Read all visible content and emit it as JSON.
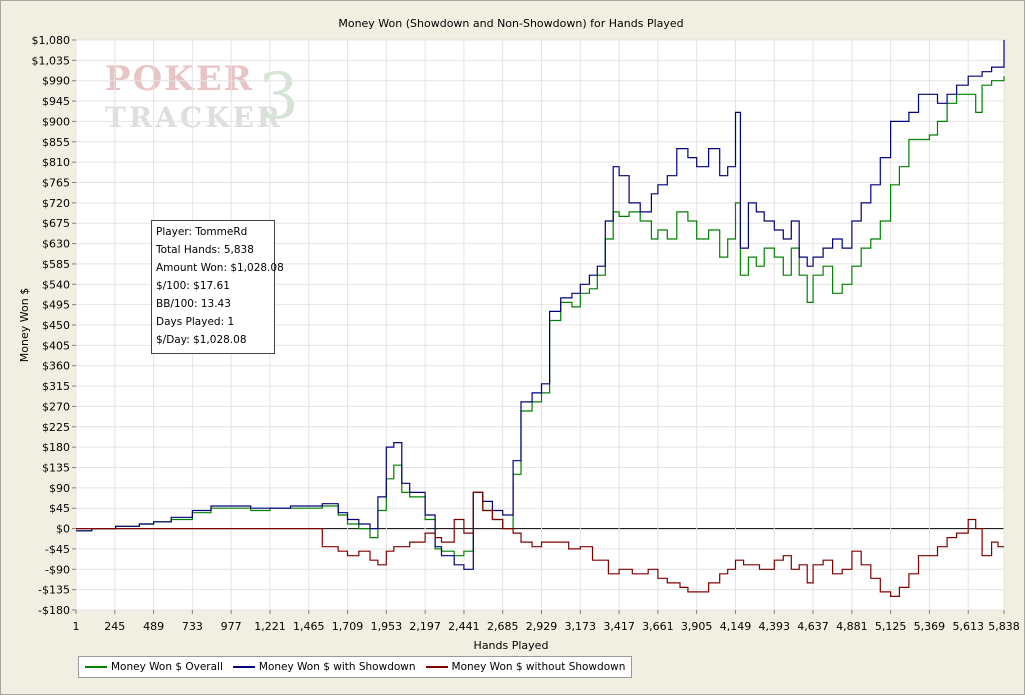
{
  "chart_data": {
    "type": "line",
    "title": "Money Won (Showdown and Non-Showdown) for Hands Played",
    "xlabel": "Hands Played",
    "ylabel": "Money Won $",
    "xlim": [
      1,
      5838
    ],
    "ylim": [
      -180,
      1080
    ],
    "x_ticks": [
      1,
      245,
      489,
      733,
      977,
      1221,
      1465,
      1709,
      1953,
      2197,
      2441,
      2685,
      2929,
      3173,
      3417,
      3661,
      3905,
      4149,
      4393,
      4637,
      4881,
      5125,
      5369,
      5613,
      5838
    ],
    "x_tick_labels": [
      "1",
      "245",
      "489",
      "733",
      "977",
      "1,221",
      "1,465",
      "1,709",
      "1,953",
      "2,197",
      "2,441",
      "2,685",
      "2,929",
      "3,173",
      "3,417",
      "3,661",
      "3,905",
      "4,149",
      "4,393",
      "4,637",
      "4,881",
      "5,125",
      "5,369",
      "5,613",
      "5,838"
    ],
    "y_ticks": [
      -180,
      -135,
      -90,
      -45,
      0,
      45,
      90,
      135,
      180,
      225,
      270,
      315,
      360,
      405,
      450,
      495,
      540,
      585,
      630,
      675,
      720,
      765,
      810,
      855,
      900,
      945,
      990,
      1035,
      1080
    ],
    "y_tick_labels": [
      "-$180",
      "-$135",
      "-$90",
      "-$45",
      "$0",
      "$45",
      "$90",
      "$135",
      "$180",
      "$225",
      "$270",
      "$315",
      "$360",
      "$405",
      "$450",
      "$495",
      "$540",
      "$585",
      "$630",
      "$675",
      "$720",
      "$765",
      "$810",
      "$855",
      "$900",
      "$945",
      "$990",
      "$1,035",
      "$1,080"
    ],
    "grid": true,
    "legend_position": "bottom-left",
    "series": [
      {
        "name": "Money Won $ Overall",
        "color": "#008000",
        "x": [
          1,
          100,
          250,
          400,
          489,
          600,
          733,
          850,
          977,
          1100,
          1221,
          1350,
          1465,
          1550,
          1650,
          1709,
          1780,
          1850,
          1900,
          1953,
          2000,
          2050,
          2100,
          2197,
          2260,
          2300,
          2380,
          2441,
          2500,
          2560,
          2620,
          2685,
          2750,
          2800,
          2870,
          2929,
          2980,
          3050,
          3120,
          3173,
          3230,
          3280,
          3330,
          3380,
          3417,
          3480,
          3550,
          3620,
          3661,
          3720,
          3780,
          3850,
          3905,
          3980,
          4050,
          4100,
          4149,
          4180,
          4230,
          4280,
          4330,
          4393,
          4450,
          4500,
          4550,
          4600,
          4637,
          4700,
          4760,
          4820,
          4881,
          4940,
          5000,
          5060,
          5125,
          5180,
          5240,
          5300,
          5369,
          5420,
          5480,
          5540,
          5613,
          5660,
          5700,
          5760,
          5800,
          5838
        ],
        "y": [
          -5,
          0,
          5,
          10,
          15,
          20,
          35,
          45,
          45,
          40,
          45,
          45,
          45,
          50,
          30,
          10,
          0,
          -20,
          40,
          110,
          140,
          80,
          70,
          20,
          -45,
          -50,
          -60,
          -50,
          80,
          40,
          20,
          0,
          120,
          260,
          280,
          300,
          460,
          500,
          490,
          520,
          530,
          560,
          640,
          700,
          690,
          700,
          680,
          640,
          660,
          640,
          700,
          680,
          640,
          660,
          600,
          640,
          720,
          560,
          600,
          580,
          620,
          600,
          560,
          620,
          560,
          500,
          560,
          580,
          520,
          540,
          580,
          620,
          640,
          680,
          760,
          800,
          860,
          860,
          870,
          900,
          940,
          960,
          960,
          920,
          980,
          990,
          990,
          1000
        ]
      },
      {
        "name": "Money Won $ with Showdown",
        "color": "#00007f",
        "x": [
          1,
          100,
          250,
          400,
          489,
          600,
          733,
          850,
          977,
          1100,
          1221,
          1350,
          1465,
          1550,
          1650,
          1709,
          1780,
          1850,
          1900,
          1953,
          2000,
          2050,
          2100,
          2197,
          2260,
          2300,
          2380,
          2441,
          2500,
          2560,
          2620,
          2685,
          2750,
          2800,
          2870,
          2929,
          2980,
          3050,
          3120,
          3173,
          3230,
          3280,
          3330,
          3380,
          3417,
          3480,
          3550,
          3620,
          3661,
          3720,
          3780,
          3850,
          3905,
          3980,
          4050,
          4100,
          4149,
          4180,
          4230,
          4280,
          4330,
          4393,
          4450,
          4500,
          4550,
          4600,
          4637,
          4700,
          4760,
          4820,
          4881,
          4940,
          5000,
          5060,
          5125,
          5180,
          5240,
          5300,
          5369,
          5420,
          5480,
          5540,
          5613,
          5660,
          5700,
          5760,
          5800,
          5838
        ],
        "y": [
          -5,
          0,
          5,
          10,
          15,
          25,
          40,
          50,
          50,
          45,
          45,
          50,
          50,
          55,
          35,
          20,
          10,
          0,
          70,
          180,
          190,
          100,
          80,
          30,
          -40,
          -60,
          -80,
          -90,
          80,
          60,
          40,
          30,
          150,
          280,
          300,
          320,
          480,
          510,
          520,
          540,
          560,
          580,
          680,
          800,
          780,
          720,
          700,
          740,
          760,
          780,
          840,
          820,
          800,
          840,
          780,
          800,
          920,
          620,
          720,
          700,
          680,
          660,
          640,
          680,
          600,
          580,
          600,
          620,
          640,
          620,
          680,
          720,
          760,
          820,
          900,
          900,
          920,
          960,
          960,
          940,
          960,
          980,
          1000,
          1000,
          1010,
          1020,
          1020,
          1080
        ]
      },
      {
        "name": "Money Won $ without Showdown",
        "color": "#800000",
        "x": [
          1,
          200,
          400,
          600,
          800,
          1000,
          1200,
          1400,
          1465,
          1550,
          1650,
          1709,
          1780,
          1850,
          1900,
          1953,
          2000,
          2100,
          2197,
          2260,
          2300,
          2380,
          2441,
          2500,
          2560,
          2620,
          2685,
          2750,
          2800,
          2870,
          2929,
          3000,
          3100,
          3173,
          3250,
          3350,
          3417,
          3500,
          3600,
          3661,
          3720,
          3800,
          3850,
          3905,
          3980,
          4050,
          4100,
          4149,
          4200,
          4300,
          4393,
          4450,
          4500,
          4550,
          4600,
          4637,
          4700,
          4760,
          4820,
          4881,
          4940,
          5000,
          5060,
          5125,
          5180,
          5240,
          5300,
          5369,
          5420,
          5480,
          5540,
          5613,
          5660,
          5700,
          5760,
          5800,
          5838
        ],
        "y": [
          0,
          0,
          0,
          0,
          0,
          0,
          0,
          0,
          0,
          -40,
          -50,
          -60,
          -50,
          -70,
          -80,
          -50,
          -40,
          -30,
          -10,
          -20,
          -30,
          20,
          -10,
          80,
          40,
          20,
          0,
          -10,
          -30,
          -40,
          -30,
          -30,
          -45,
          -40,
          -70,
          -100,
          -90,
          -100,
          -90,
          -110,
          -120,
          -130,
          -140,
          -140,
          -120,
          -100,
          -90,
          -70,
          -80,
          -90,
          -70,
          -60,
          -90,
          -80,
          -120,
          -80,
          -70,
          -100,
          -90,
          -50,
          -80,
          -110,
          -140,
          -150,
          -130,
          -100,
          -60,
          -60,
          -40,
          -20,
          -10,
          20,
          0,
          -60,
          -30,
          -40,
          -40
        ]
      }
    ]
  },
  "stats": {
    "player": "Player: TommeRd",
    "total_hands": "Total Hands: 5,838",
    "amount_won": "Amount Won: $1,028.08",
    "per_100": "$/100: $17.61",
    "bb_100": "BB/100: 13.43",
    "days_played": "Days Played: 1",
    "per_day": "$/Day: $1,028.08"
  },
  "watermark": {
    "line1": "POKER",
    "line2": "TRACKER",
    "number": "3"
  }
}
